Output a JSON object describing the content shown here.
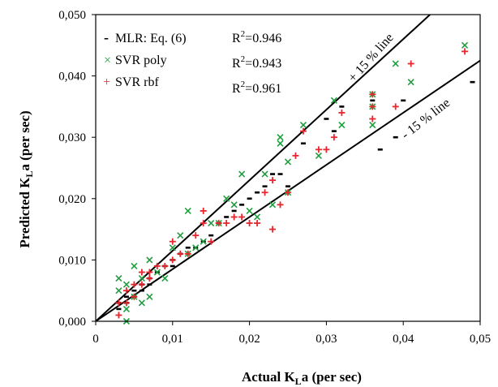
{
  "chart_data": {
    "type": "scatter",
    "xlabel": {
      "main": "Actual K",
      "sub": "L",
      "rest": "a (per sec)"
    },
    "ylabel": {
      "main": "Predicted K",
      "sub": "L",
      "rest": "a (per sec)"
    },
    "xlim": [
      0,
      0.05
    ],
    "ylim": [
      0,
      0.05
    ],
    "x_ticks": [
      0,
      0.01,
      0.02,
      0.03,
      0.04,
      0.05
    ],
    "x_tick_labels": [
      "0",
      "0,01",
      "0,02",
      "0,03",
      "0,04",
      "0,05"
    ],
    "y_ticks": [
      0,
      0.01,
      0.02,
      0.03,
      0.04,
      0.05
    ],
    "y_tick_labels": [
      "0,000",
      "0,010",
      "0,020",
      "0,030",
      "0,040",
      "0,050"
    ],
    "grid": false,
    "legend_position": "top-left",
    "reference_lines": [
      {
        "label": "+ 15 % line",
        "slope": 1.15
      },
      {
        "label": "- 15 % line",
        "slope": 0.85
      }
    ],
    "series": [
      {
        "name": "MLR: Eq. (6)",
        "marker": "dash",
        "color": "#000000",
        "r2": "R2=0.946",
        "points": [
          [
            0.003,
            0.002
          ],
          [
            0.003,
            0.003
          ],
          [
            0.004,
            0.003
          ],
          [
            0.004,
            0.004
          ],
          [
            0.005,
            0.004
          ],
          [
            0.005,
            0.005
          ],
          [
            0.006,
            0.005
          ],
          [
            0.006,
            0.006
          ],
          [
            0.007,
            0.006
          ],
          [
            0.007,
            0.007
          ],
          [
            0.008,
            0.008
          ],
          [
            0.009,
            0.009
          ],
          [
            0.01,
            0.009
          ],
          [
            0.01,
            0.01
          ],
          [
            0.011,
            0.011
          ],
          [
            0.012,
            0.012
          ],
          [
            0.013,
            0.012
          ],
          [
            0.014,
            0.013
          ],
          [
            0.015,
            0.014
          ],
          [
            0.016,
            0.016
          ],
          [
            0.017,
            0.017
          ],
          [
            0.018,
            0.018
          ],
          [
            0.019,
            0.019
          ],
          [
            0.02,
            0.02
          ],
          [
            0.021,
            0.021
          ],
          [
            0.022,
            0.022
          ],
          [
            0.023,
            0.024
          ],
          [
            0.024,
            0.024
          ],
          [
            0.025,
            0.022
          ],
          [
            0.027,
            0.029
          ],
          [
            0.03,
            0.033
          ],
          [
            0.031,
            0.031
          ],
          [
            0.032,
            0.035
          ],
          [
            0.036,
            0.036
          ],
          [
            0.037,
            0.028
          ],
          [
            0.039,
            0.03
          ],
          [
            0.04,
            0.036
          ],
          [
            0.049,
            0.039
          ]
        ]
      },
      {
        "name": "SVR poly",
        "marker": "x",
        "color": "#1f9d3f",
        "r2": "R2=0.943",
        "points": [
          [
            0.003,
            0.007
          ],
          [
            0.003,
            0.005
          ],
          [
            0.004,
            0.002
          ],
          [
            0.004,
            0.0
          ],
          [
            0.004,
            0.006
          ],
          [
            0.005,
            0.009
          ],
          [
            0.005,
            0.004
          ],
          [
            0.006,
            0.003
          ],
          [
            0.006,
            0.007
          ],
          [
            0.007,
            0.004
          ],
          [
            0.007,
            0.01
          ],
          [
            0.008,
            0.008
          ],
          [
            0.009,
            0.007
          ],
          [
            0.01,
            0.012
          ],
          [
            0.011,
            0.014
          ],
          [
            0.012,
            0.018
          ],
          [
            0.012,
            0.011
          ],
          [
            0.013,
            0.012
          ],
          [
            0.014,
            0.013
          ],
          [
            0.015,
            0.016
          ],
          [
            0.016,
            0.016
          ],
          [
            0.017,
            0.02
          ],
          [
            0.018,
            0.019
          ],
          [
            0.019,
            0.024
          ],
          [
            0.02,
            0.018
          ],
          [
            0.021,
            0.017
          ],
          [
            0.022,
            0.024
          ],
          [
            0.023,
            0.019
          ],
          [
            0.024,
            0.03
          ],
          [
            0.024,
            0.029
          ],
          [
            0.025,
            0.021
          ],
          [
            0.025,
            0.026
          ],
          [
            0.027,
            0.032
          ],
          [
            0.029,
            0.027
          ],
          [
            0.031,
            0.036
          ],
          [
            0.032,
            0.032
          ],
          [
            0.036,
            0.037
          ],
          [
            0.036,
            0.032
          ],
          [
            0.036,
            0.035
          ],
          [
            0.039,
            0.042
          ],
          [
            0.041,
            0.039
          ],
          [
            0.048,
            0.045
          ]
        ]
      },
      {
        "name": "SVR rbf",
        "marker": "plus",
        "color": "#e8262d",
        "r2": "R2=0.961",
        "points": [
          [
            0.003,
            0.001
          ],
          [
            0.003,
            0.003
          ],
          [
            0.004,
            0.003
          ],
          [
            0.004,
            0.005
          ],
          [
            0.005,
            0.004
          ],
          [
            0.005,
            0.006
          ],
          [
            0.006,
            0.006
          ],
          [
            0.006,
            0.008
          ],
          [
            0.007,
            0.007
          ],
          [
            0.007,
            0.008
          ],
          [
            0.008,
            0.009
          ],
          [
            0.009,
            0.009
          ],
          [
            0.01,
            0.01
          ],
          [
            0.01,
            0.013
          ],
          [
            0.011,
            0.011
          ],
          [
            0.012,
            0.011
          ],
          [
            0.013,
            0.014
          ],
          [
            0.014,
            0.018
          ],
          [
            0.014,
            0.016
          ],
          [
            0.015,
            0.013
          ],
          [
            0.016,
            0.016
          ],
          [
            0.017,
            0.016
          ],
          [
            0.018,
            0.017
          ],
          [
            0.019,
            0.017
          ],
          [
            0.02,
            0.016
          ],
          [
            0.021,
            0.016
          ],
          [
            0.022,
            0.021
          ],
          [
            0.023,
            0.023
          ],
          [
            0.023,
            0.015
          ],
          [
            0.024,
            0.019
          ],
          [
            0.025,
            0.021
          ],
          [
            0.026,
            0.027
          ],
          [
            0.027,
            0.031
          ],
          [
            0.029,
            0.028
          ],
          [
            0.03,
            0.028
          ],
          [
            0.031,
            0.03
          ],
          [
            0.032,
            0.034
          ],
          [
            0.036,
            0.037
          ],
          [
            0.036,
            0.033
          ],
          [
            0.036,
            0.035
          ],
          [
            0.039,
            0.035
          ],
          [
            0.041,
            0.042
          ],
          [
            0.048,
            0.044
          ]
        ]
      }
    ]
  },
  "legend_items": [
    {
      "symbol": "-",
      "text": "MLR: Eq. (6)",
      "r2_base": "R",
      "r2_sup": "2",
      "r2_rest": "=0.946"
    },
    {
      "symbol": "×",
      "text": "SVR poly",
      "r2_base": "R",
      "r2_sup": "2",
      "r2_rest": "=0.943"
    },
    {
      "symbol": "+",
      "text": "SVR rbf",
      "r2_base": "R",
      "r2_sup": "2",
      "r2_rest": "=0.961"
    }
  ]
}
